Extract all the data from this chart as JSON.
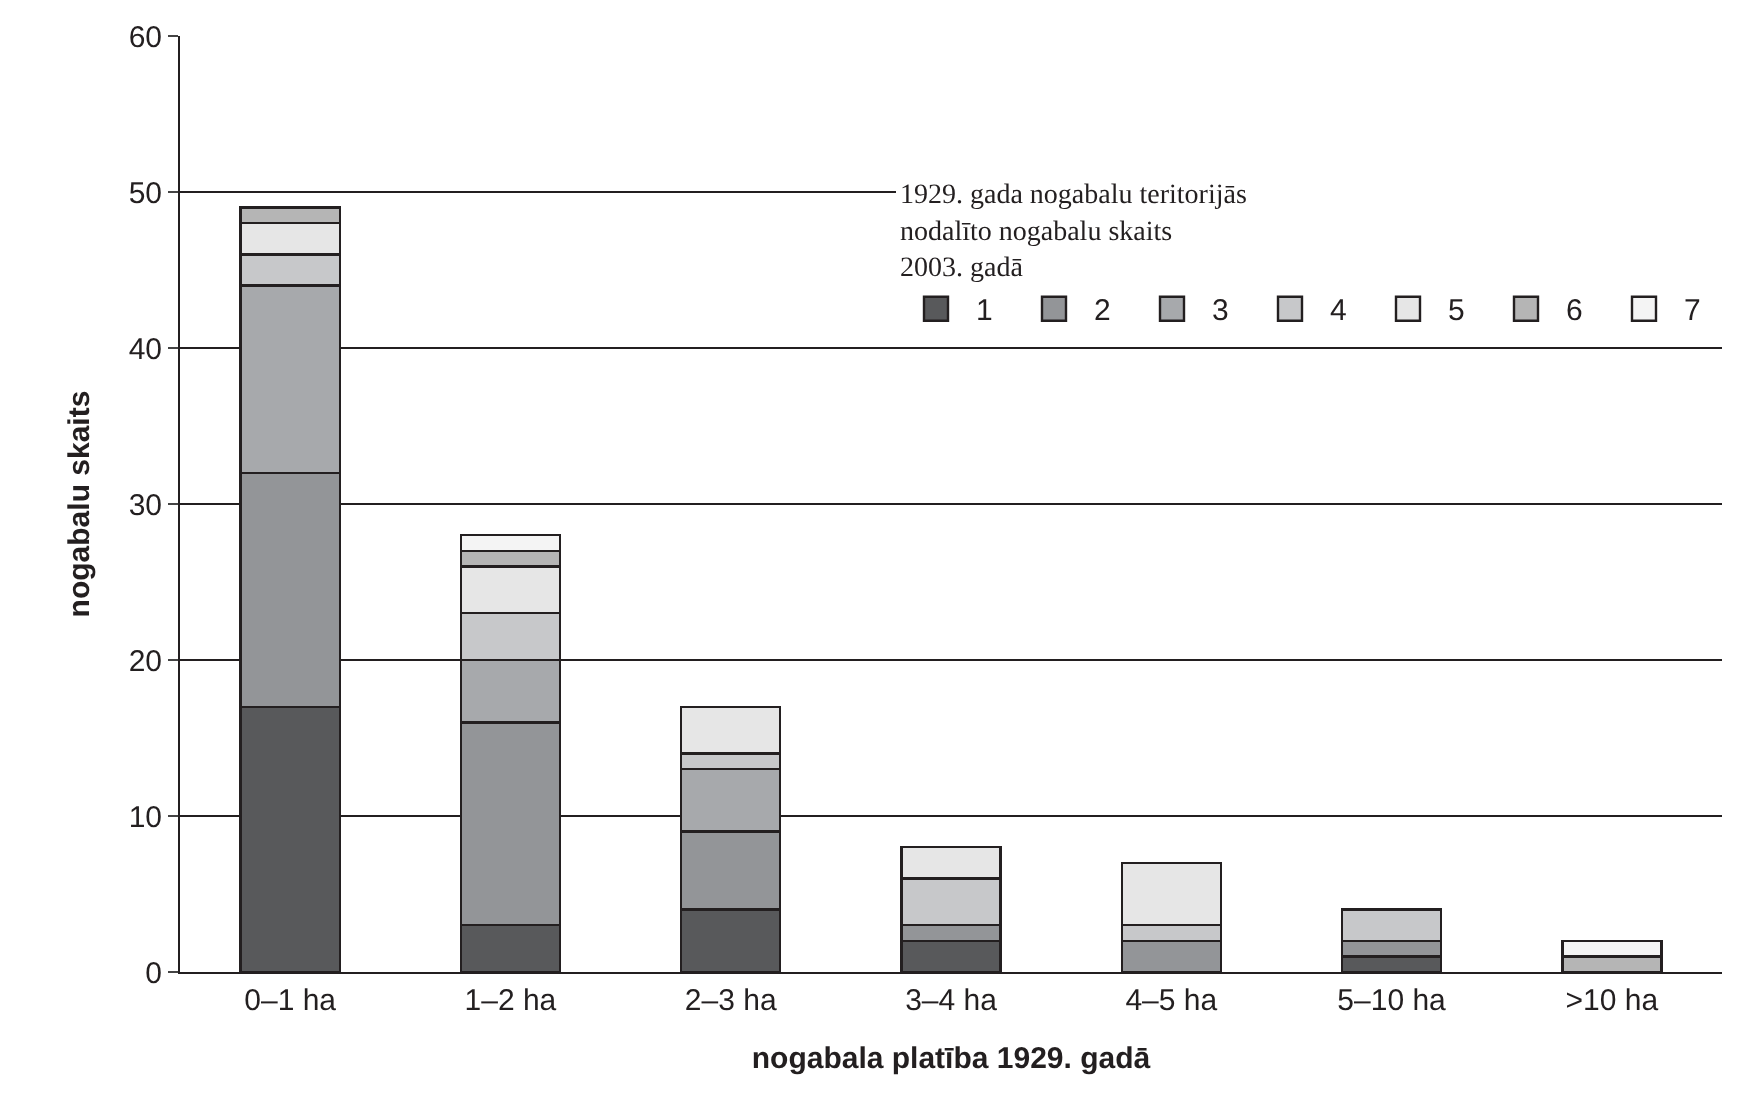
{
  "chart_data": {
    "type": "bar",
    "stacked": true,
    "xlabel": "nogabala platība 1929. gadā",
    "ylabel": "nogabalu skaits",
    "legend_title": "1929. gada nogabalu teritorijās nodalīto nogabalu skaits 2003. gadā",
    "categories": [
      "0–1 ha",
      "1–2 ha",
      "2–3 ha",
      "3–4 ha",
      "4–5 ha",
      "5–10 ha",
      ">10 ha"
    ],
    "series": [
      {
        "name": "1",
        "color": "#58595b",
        "values": [
          17,
          3,
          4,
          2,
          0,
          1,
          0
        ]
      },
      {
        "name": "2",
        "color": "#939598",
        "values": [
          15,
          13,
          5,
          1,
          2,
          1,
          0
        ]
      },
      {
        "name": "3",
        "color": "#a7a9ac",
        "values": [
          12,
          4,
          4,
          0,
          0,
          0,
          0
        ]
      },
      {
        "name": "4",
        "color": "#c7c8ca",
        "values": [
          2,
          3,
          1,
          3,
          1,
          2,
          0
        ]
      },
      {
        "name": "5",
        "color": "#e6e6e6",
        "values": [
          2,
          3,
          3,
          2,
          4,
          0,
          0
        ]
      },
      {
        "name": "6",
        "color": "#b5b5b5",
        "values": [
          1,
          1,
          0,
          0,
          0,
          0,
          1
        ]
      },
      {
        "name": "7",
        "color": "#f4f4f4",
        "values": [
          0,
          1,
          0,
          0,
          0,
          0,
          1
        ]
      }
    ],
    "ylim": [
      0,
      60
    ],
    "yticks": [
      0,
      10,
      20,
      30,
      40,
      50,
      60
    ],
    "grid": "y",
    "legend": "right"
  }
}
